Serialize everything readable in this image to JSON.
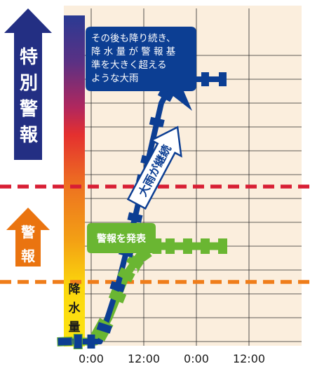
{
  "chart_data": {
    "type": "line",
    "x_ticks": [
      "0:00",
      "12:00",
      "0:00",
      "12:00"
    ],
    "y_label": "降水量",
    "ylim": [
      0,
      12
    ],
    "grid": true,
    "levels": [
      {
        "name": "特別警報",
        "value": 6.5,
        "color": "#d81e34"
      },
      {
        "name": "警報",
        "value": 2.5,
        "color": "#ef7d1a"
      }
    ],
    "series": [
      {
        "color": "#0c3e93",
        "points": [
          [
            -6,
            0
          ],
          [
            2,
            0
          ],
          [
            6,
            2.3
          ],
          [
            10,
            5.2
          ],
          [
            12,
            6.8
          ],
          [
            16,
            10
          ],
          [
            19,
            11
          ],
          [
            22,
            11
          ],
          [
            26,
            11
          ],
          [
            30,
            11
          ]
        ],
        "marker_x": [
          -6,
          -3,
          0,
          3,
          6,
          8,
          10,
          12,
          13,
          15,
          17,
          20,
          26,
          30
        ]
      },
      {
        "color": "#6ab632",
        "points": [
          [
            -6,
            0
          ],
          [
            1,
            0
          ],
          [
            4,
            1
          ],
          [
            8,
            2.8
          ],
          [
            11,
            3.6
          ],
          [
            14,
            4.0
          ],
          [
            22,
            4.0
          ],
          [
            30,
            4.0
          ]
        ],
        "marker_x": [
          -6,
          -3,
          2,
          3,
          6,
          8,
          10,
          12,
          15,
          18,
          22,
          26,
          30
        ]
      }
    ],
    "annotations": [
      {
        "text": "その後も降り続き、\n降 水 量 が 警 報 基\n準を大きく超える\nような大雨",
        "color": "#0c3e93"
      },
      {
        "text": "警報を発表",
        "color": "#6ab632"
      },
      {
        "text": "大雨が継続",
        "color": "#0c3e93"
      }
    ]
  },
  "side_labels": {
    "special_warning": "特別警報",
    "warning": "警報"
  },
  "colors": {
    "special_warning": "#232f83",
    "warning": "#ea7410",
    "plot_bg": "#fbeedd"
  }
}
